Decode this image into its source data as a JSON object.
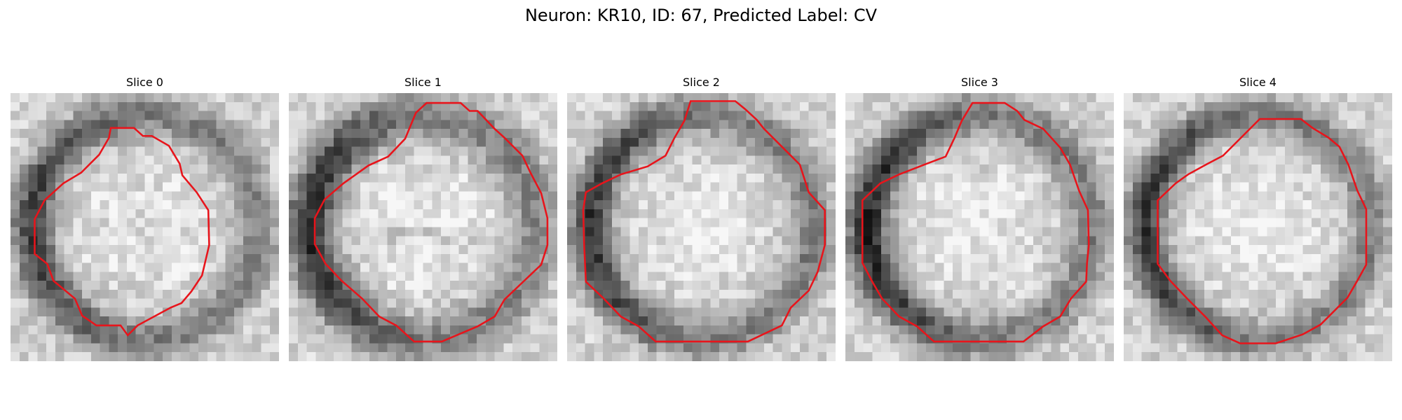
{
  "figure": {
    "title": "Neuron: KR10, ID: 67, Predicted Label: CV"
  },
  "panels": [
    {
      "title": "Slice 0"
    },
    {
      "title": "Slice 1"
    },
    {
      "title": "Slice 2"
    },
    {
      "title": "Slice 3"
    },
    {
      "title": "Slice 4"
    }
  ],
  "colors": {
    "contour": "#e8141b",
    "background": "#ffffff"
  }
}
